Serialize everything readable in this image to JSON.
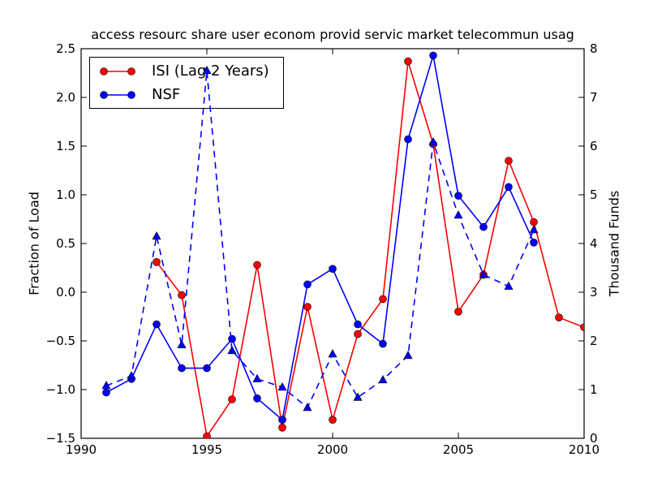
{
  "axes": {
    "ylabel_left": "Fraction of Load",
    "ylabel_right": "Thousand Funds",
    "xlim": [
      1990,
      2010
    ],
    "ylim_left": [
      -1.5,
      2.5
    ],
    "ylim_right": [
      0,
      8
    ],
    "x_ticks": [
      1990,
      1995,
      2000,
      2005,
      2010
    ],
    "x_tick_labels": [
      "1990",
      "1995",
      "2000",
      "2005",
      "2010"
    ],
    "y_ticks_left": [
      2.5,
      2.0,
      1.5,
      1.0,
      0.5,
      0.0,
      -0.5,
      -1.0,
      -1.5
    ],
    "y_tick_labels_left": [
      "2.5",
      "2.0",
      "1.5",
      "1.0",
      "0.5",
      "0.0",
      "−0.5",
      "−1.0",
      "−1.5"
    ],
    "y_ticks_right": [
      8,
      7,
      6,
      5,
      4,
      3,
      2,
      1,
      0
    ],
    "y_tick_labels_right": [
      "8",
      "7",
      "6",
      "5",
      "4",
      "3",
      "2",
      "1",
      "0"
    ]
  },
  "legend": {
    "position": "upper left",
    "entries": [
      {
        "label": "ISI (Lag 2 Years)",
        "color": "#ff0000"
      },
      {
        "label": "NSF",
        "color": "#0000ff"
      }
    ]
  },
  "chart_data": {
    "type": "line",
    "title": "access resourc share user econom provid servic market telecommun usag",
    "xlabel": "",
    "ylabel_left": "Fraction of Load",
    "ylabel_right": "Thousand Funds",
    "xlim": [
      1990,
      2010
    ],
    "ylim_left": [
      -1.5,
      2.5
    ],
    "ylim_right": [
      0,
      8
    ],
    "grid": false,
    "legend_position": "upper left",
    "series": [
      {
        "key": "isi",
        "name": "ISI (Lag 2 Years)",
        "axis": "left",
        "color": "#ff0000",
        "line_style": "solid",
        "marker": "circle",
        "in_legend": true,
        "x": [
          1993,
          1994,
          1995,
          1996,
          1997,
          1998,
          1999,
          2000,
          2001,
          2002,
          2003,
          2004,
          2005,
          2006,
          2007,
          2008,
          2009,
          2010
        ],
        "y": [
          0.31,
          -0.03,
          -1.48,
          -1.1,
          0.28,
          -1.39,
          -0.15,
          -1.31,
          -0.43,
          -0.07,
          2.37,
          1.52,
          -0.2,
          0.18,
          1.35,
          0.72,
          -0.26,
          -0.36
        ]
      },
      {
        "key": "nsf",
        "name": "NSF",
        "axis": "left",
        "color": "#0000ff",
        "line_style": "solid",
        "marker": "circle",
        "in_legend": true,
        "x": [
          1991,
          1992,
          1993,
          1994,
          1995,
          1996,
          1997,
          1998,
          1999,
          2000,
          2001,
          2002,
          2003,
          2004,
          2005,
          2006,
          2007,
          2008
        ],
        "y": [
          -1.03,
          -0.89,
          -0.33,
          -0.78,
          -0.78,
          -0.48,
          -1.09,
          -1.31,
          0.08,
          0.24,
          -0.33,
          -0.53,
          1.57,
          2.43,
          0.99,
          0.67,
          1.08,
          0.51
        ]
      },
      {
        "key": "thousand-funds-dashed",
        "name": "",
        "axis": "right",
        "color": "#0000ff",
        "line_style": "dashed",
        "marker": "triangle",
        "in_legend": false,
        "x": [
          1991,
          1992,
          1993,
          1994,
          1995,
          1996,
          1997,
          1998,
          1999,
          2000,
          2001,
          2002,
          2003,
          2004,
          2005,
          2006,
          2007,
          2008
        ],
        "y": [
          1.08,
          1.28,
          4.15,
          1.92,
          7.55,
          1.8,
          1.22,
          1.05,
          0.63,
          1.73,
          0.84,
          1.2,
          1.7,
          6.08,
          4.58,
          3.36,
          3.12,
          4.28
        ]
      }
    ]
  }
}
